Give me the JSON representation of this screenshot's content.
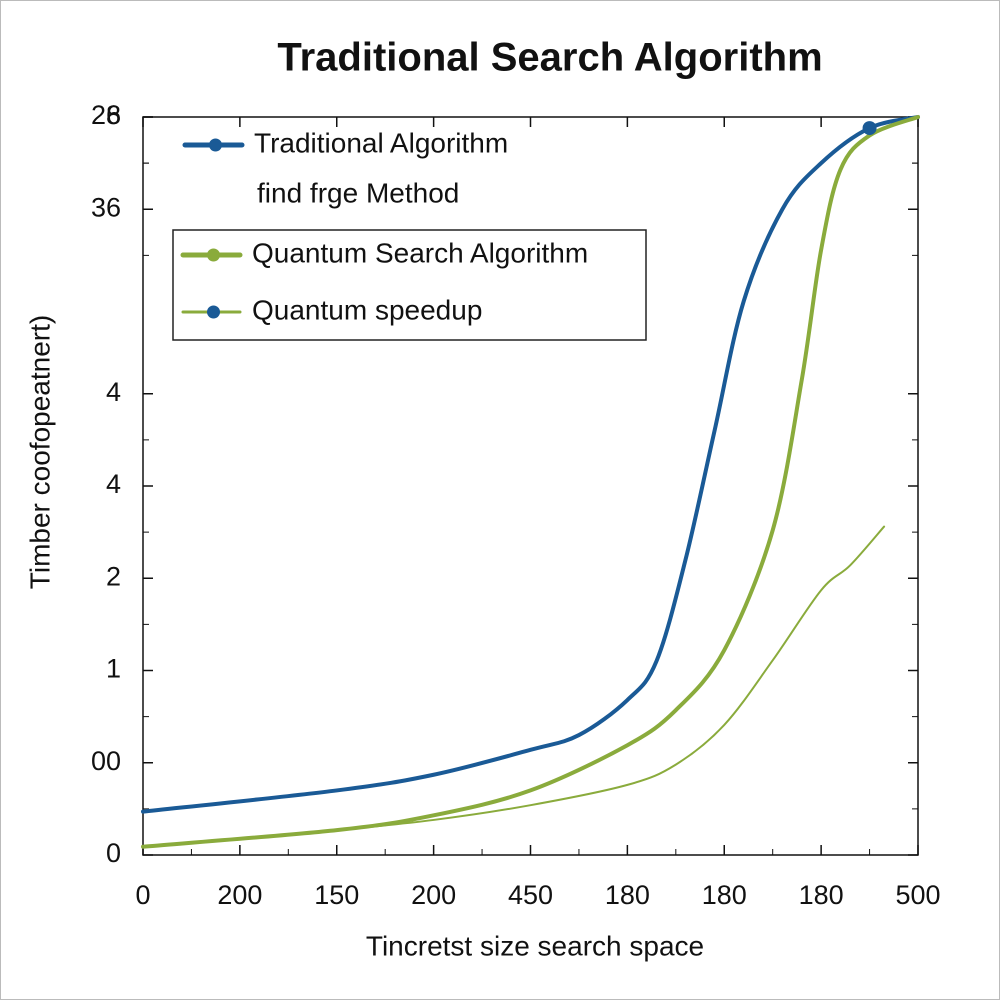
{
  "chart_data": {
    "type": "line",
    "title": "Traditional Search Algorithm",
    "xlabel": "Tincretst size search space",
    "ylabel": "Timber coofopeatnert)",
    "xlim": [
      0,
      8
    ],
    "ylim": [
      0,
      8
    ],
    "xticks": [
      0,
      {
        "value": 1,
        "label": "200"
      },
      {
        "value": 2,
        "label": "150"
      },
      {
        "value": 3,
        "label": "200"
      },
      {
        "value": 4,
        "label": "450"
      },
      {
        "value": 5,
        "label": "180"
      },
      {
        "value": 6,
        "label": "180"
      },
      {
        "value": 7,
        "label": "180"
      },
      {
        "value": 8,
        "label": "500"
      }
    ],
    "yticks": [
      0,
      {
        "value": 1,
        "label": "00"
      },
      {
        "value": 2,
        "label": "1"
      },
      {
        "value": 3,
        "label": "2"
      },
      4,
      {
        "value": 5,
        "label": "4"
      },
      8,
      {
        "value": 7,
        "label": "36"
      },
      {
        "value": 8,
        "label": "26"
      }
    ],
    "legend_note": "find frge Method",
    "series": [
      {
        "name": "Traditional Algorithm",
        "color": "#1a5a96",
        "width": 4,
        "x": [
          0,
          2,
          3,
          4,
          4.5,
          5,
          5.3,
          5.6,
          5.9,
          6.2,
          6.6,
          7,
          7.5,
          8
        ],
        "values": [
          0.47,
          0.7,
          0.87,
          1.14,
          1.3,
          1.68,
          2.1,
          3.2,
          4.6,
          6.0,
          7.0,
          7.5,
          7.88,
          8
        ]
      },
      {
        "name": "Quantum Search Algorithm",
        "color": "#8aab3c",
        "width": 4,
        "x": [
          0,
          2,
          3,
          4,
          5,
          5.5,
          6,
          6.5,
          6.8,
          7,
          7.2,
          7.5,
          8
        ],
        "values": [
          0.09,
          0.27,
          0.43,
          0.7,
          1.19,
          1.57,
          2.22,
          3.52,
          5.15,
          6.56,
          7.43,
          7.8,
          8
        ]
      },
      {
        "name": "Quantum  speedup",
        "color": "#8aab3c",
        "width": 2,
        "marker_color": "#1a5a96",
        "x": [
          0,
          2,
          3,
          4,
          5,
          5.5,
          6,
          6.5,
          7,
          7.3,
          7.65
        ],
        "values": [
          0.09,
          0.27,
          0.38,
          0.54,
          0.76,
          0.98,
          1.41,
          2.11,
          2.87,
          3.14,
          3.56
        ]
      }
    ],
    "marker_point": {
      "x": 7.5,
      "y": 7.88,
      "color": "#1a5a96"
    }
  }
}
